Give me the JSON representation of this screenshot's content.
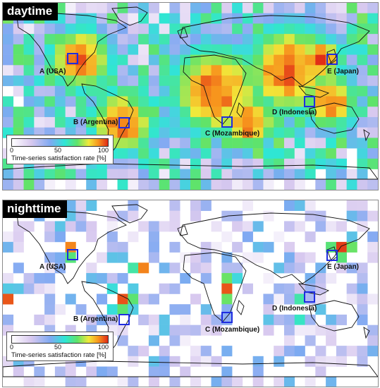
{
  "panels": {
    "day": {
      "tag": "daytime"
    },
    "night": {
      "tag": "nighttime"
    }
  },
  "sites": {
    "a": "A (USA)",
    "b": "B (Argentina)",
    "c": "C (Mozambique)",
    "d": "D (Indonesia)",
    "e": "E (Japan)"
  },
  "legend": {
    "min": "0",
    "mid": "50",
    "max": "100",
    "caption": "Time-series satisfaction rate [%]"
  },
  "colors": {
    "box": "#1f2de0",
    "scale": [
      "#ffffff",
      "#d8c9ef",
      "#7fa9f2",
      "#2ee6d6",
      "#5fe36a",
      "#f2e93a",
      "#f7951d",
      "#e02a17"
    ]
  }
}
